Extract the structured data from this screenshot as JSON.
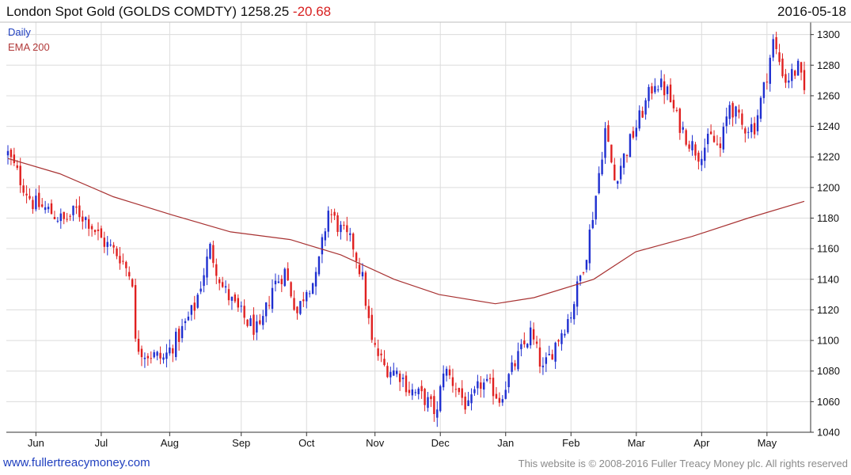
{
  "header": {
    "title": "London Spot Gold (GOLDS COMDTY) 1258.25",
    "change": "-20.68",
    "date": "2016-05-18"
  },
  "legend": {
    "daily": "Daily",
    "ema": "EMA 200"
  },
  "footer": {
    "left": "www.fullertreacymoney.com",
    "right": "This website is © 2008-2016 Fuller Treacy Money plc. All rights reserved"
  },
  "colors": {
    "up": "#1f2fd0",
    "down": "#e02020",
    "ema": "#a83232",
    "grid": "#dcdcdc",
    "axis": "#333333"
  },
  "chart_data": {
    "type": "line",
    "series_style": "candlestick",
    "ylim": [
      1040,
      1305
    ],
    "y_ticks": [
      1040,
      1060,
      1080,
      1100,
      1120,
      1140,
      1160,
      1180,
      1200,
      1220,
      1240,
      1260,
      1280,
      1300
    ],
    "x_ticks": [
      "Jun",
      "Jul",
      "Aug",
      "Sep",
      "Oct",
      "Nov",
      "Dec",
      "Jan",
      "Feb",
      "Mar",
      "Apr",
      "May"
    ],
    "grid": true,
    "legend_position": "top-left",
    "daily_anchors": [
      [
        0,
        1222
      ],
      [
        4,
        1205
      ],
      [
        8,
        1190
      ],
      [
        13,
        1185
      ],
      [
        18,
        1178
      ],
      [
        22,
        1185
      ],
      [
        26,
        1178
      ],
      [
        30,
        1166
      ],
      [
        36,
        1155
      ],
      [
        40,
        1140
      ],
      [
        41,
        1098
      ],
      [
        44,
        1092
      ],
      [
        50,
        1088
      ],
      [
        55,
        1103
      ],
      [
        60,
        1122
      ],
      [
        65,
        1160
      ],
      [
        69,
        1135
      ],
      [
        73,
        1122
      ],
      [
        77,
        1112
      ],
      [
        81,
        1105
      ],
      [
        85,
        1135
      ],
      [
        89,
        1145
      ],
      [
        93,
        1118
      ],
      [
        96,
        1135
      ],
      [
        99,
        1140
      ],
      [
        103,
        1185
      ],
      [
        107,
        1172
      ],
      [
        111,
        1162
      ],
      [
        114,
        1140
      ],
      [
        117,
        1098
      ],
      [
        121,
        1083
      ],
      [
        126,
        1078
      ],
      [
        129,
        1068
      ],
      [
        134,
        1062
      ],
      [
        138,
        1052
      ],
      [
        140,
        1082
      ],
      [
        144,
        1070
      ],
      [
        148,
        1055
      ],
      [
        152,
        1072
      ],
      [
        156,
        1068
      ],
      [
        158,
        1062
      ],
      [
        163,
        1085
      ],
      [
        168,
        1105
      ],
      [
        172,
        1080
      ],
      [
        176,
        1098
      ],
      [
        181,
        1118
      ],
      [
        186,
        1158
      ],
      [
        189,
        1195
      ],
      [
        192,
        1238
      ],
      [
        195,
        1205
      ],
      [
        199,
        1225
      ],
      [
        204,
        1250
      ],
      [
        208,
        1270
      ],
      [
        212,
        1262
      ],
      [
        215,
        1245
      ],
      [
        219,
        1230
      ],
      [
        222,
        1222
      ],
      [
        226,
        1232
      ],
      [
        229,
        1225
      ],
      [
        232,
        1255
      ],
      [
        236,
        1240
      ],
      [
        240,
        1240
      ],
      [
        243,
        1265
      ],
      [
        246,
        1295
      ],
      [
        250,
        1270
      ],
      [
        254,
        1278
      ],
      [
        256,
        1262
      ]
    ],
    "ema200": [
      [
        1206,
        1219
      ],
      [
        1280,
        1209
      ],
      [
        1356,
        1194
      ],
      [
        1440,
        1182
      ],
      [
        1523,
        1171
      ],
      [
        1608,
        1166
      ],
      [
        1680,
        1156
      ],
      [
        1756,
        1140
      ],
      [
        1820,
        1130
      ],
      [
        1900,
        1124
      ],
      [
        1955,
        1128
      ],
      [
        2040,
        1140
      ],
      [
        2100,
        1158
      ],
      [
        2180,
        1168
      ],
      [
        2260,
        1180
      ],
      [
        2340,
        1191
      ]
    ]
  }
}
